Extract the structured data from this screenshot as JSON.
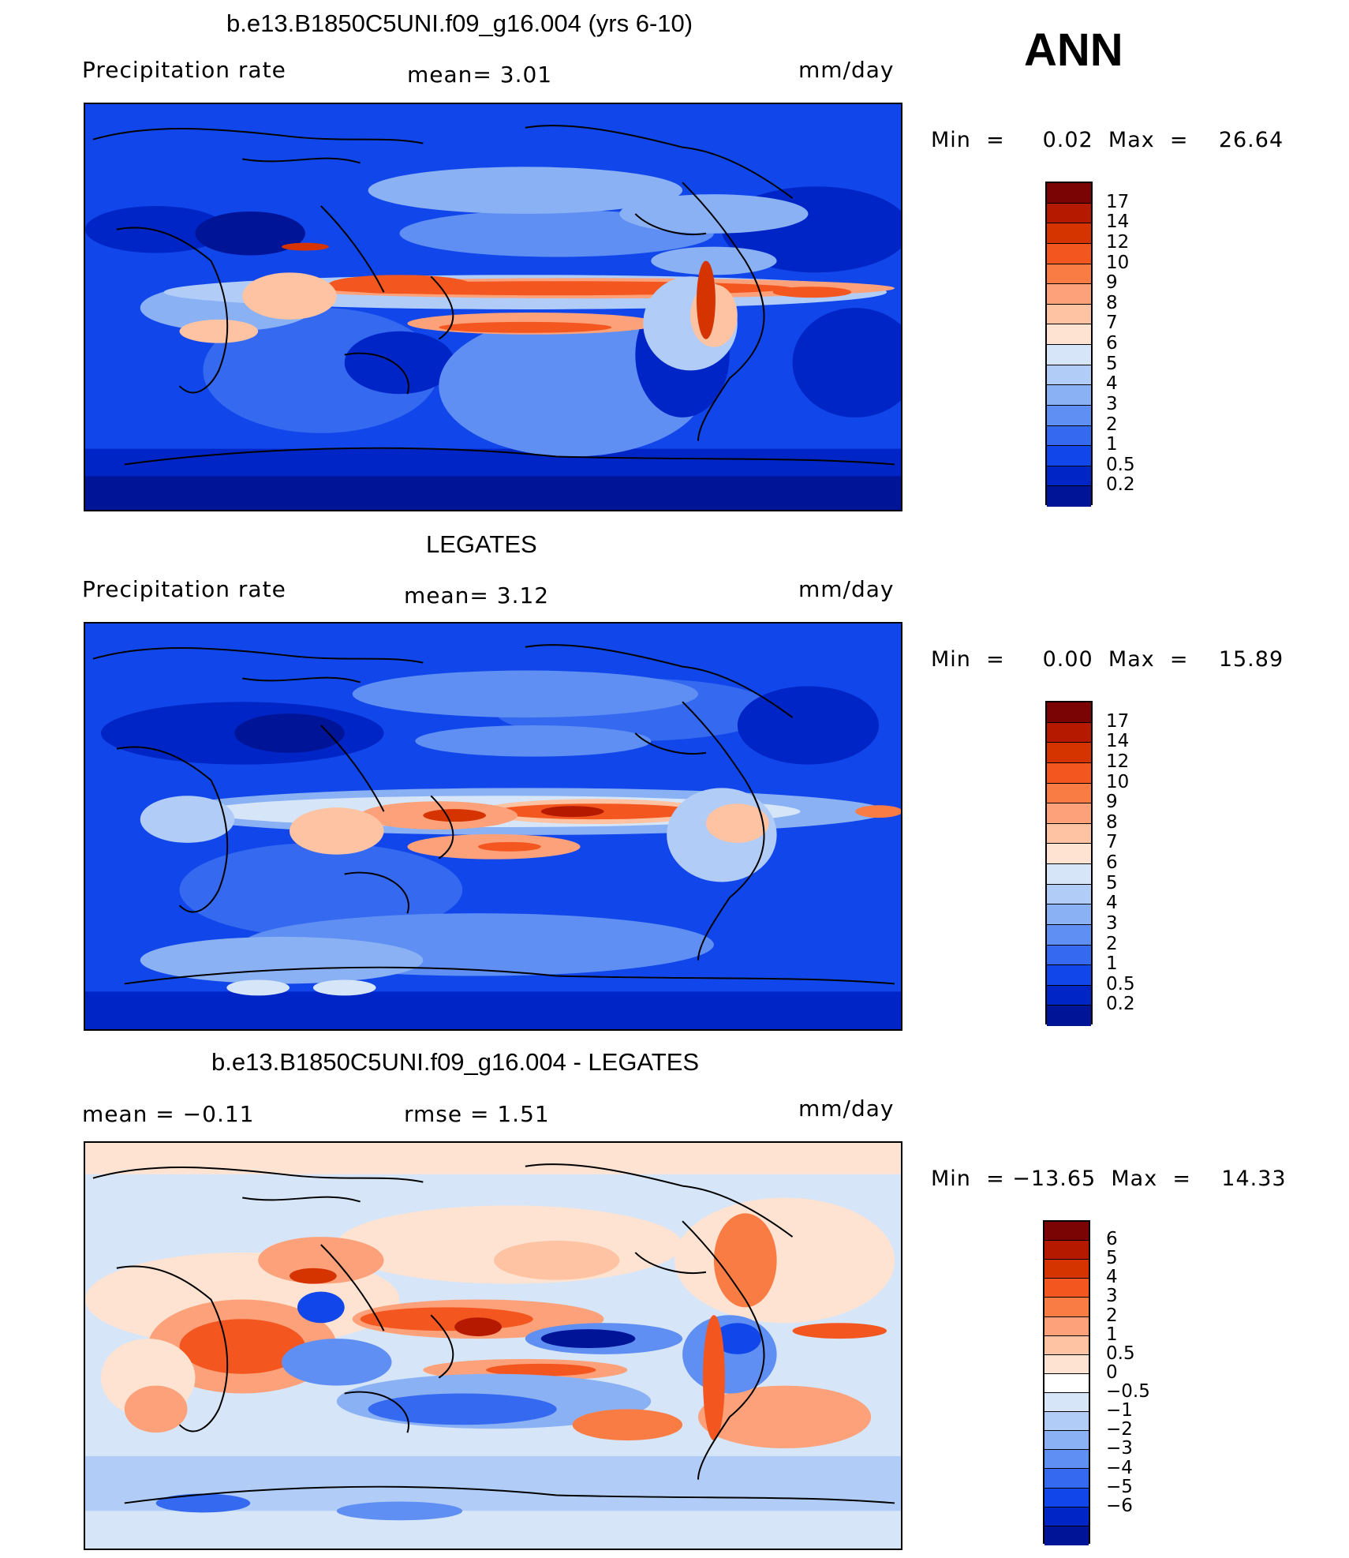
{
  "season_label": "ANN",
  "panels": [
    {
      "title": "b.e13.B1850C5UNI.f09_g16.004 (yrs 6-10)",
      "variable": "Precipitation  rate",
      "stat": "mean=    3.01",
      "units": "mm/day",
      "minmax": "Min  =     0.02  Max  =    26.64",
      "colorbar_ticks": [
        "17",
        "14",
        "12",
        "10",
        "9",
        "8",
        "7",
        "6",
        "5",
        "4",
        "3",
        "2",
        "1",
        "0.5",
        "0.2"
      ],
      "colors": [
        "#7a0403",
        "#b51a00",
        "#d53400",
        "#f4561f",
        "#fa7c45",
        "#fca17a",
        "#fdc3a2",
        "#fee3d2",
        "#d6e6f8",
        "#b1cdf7",
        "#8bb1f5",
        "#5f8ff2",
        "#3569f0",
        "#1147ea",
        "#0025c6",
        "#001497"
      ]
    },
    {
      "title": "LEGATES",
      "variable": "Precipitation  rate",
      "stat": "mean=    3.12",
      "units": "mm/day",
      "minmax": "Min  =     0.00  Max  =    15.89",
      "colorbar_ticks": [
        "17",
        "14",
        "12",
        "10",
        "9",
        "8",
        "7",
        "6",
        "5",
        "4",
        "3",
        "2",
        "1",
        "0.5",
        "0.2"
      ],
      "colors": [
        "#7a0403",
        "#b51a00",
        "#d53400",
        "#f4561f",
        "#fa7c45",
        "#fca17a",
        "#fdc3a2",
        "#fee3d2",
        "#d6e6f8",
        "#b1cdf7",
        "#8bb1f5",
        "#5f8ff2",
        "#3569f0",
        "#1147ea",
        "#0025c6",
        "#001497"
      ]
    },
    {
      "title": "b.e13.B1850C5UNI.f09_g16.004 - LEGATES",
      "stat_left": "mean  =    −0.11",
      "stat": "rmse  =     1.51",
      "units": "mm/day",
      "minmax": "Min  = −13.65  Max  =    14.33",
      "colorbar_ticks": [
        "6",
        "5",
        "4",
        "3",
        "2",
        "1",
        "0.5",
        "0",
        "−0.5",
        "−1",
        "−2",
        "−3",
        "−4",
        "−5",
        "−6"
      ],
      "colors": [
        "#7a0403",
        "#b51a00",
        "#d53400",
        "#f4561f",
        "#fa7c45",
        "#fca17a",
        "#fdc3a2",
        "#fee3d2",
        "#ffffff",
        "#d6e6f8",
        "#b1cdf7",
        "#8bb1f5",
        "#5f8ff2",
        "#3569f0",
        "#1147ea",
        "#0025c6",
        "#001497"
      ]
    }
  ]
}
